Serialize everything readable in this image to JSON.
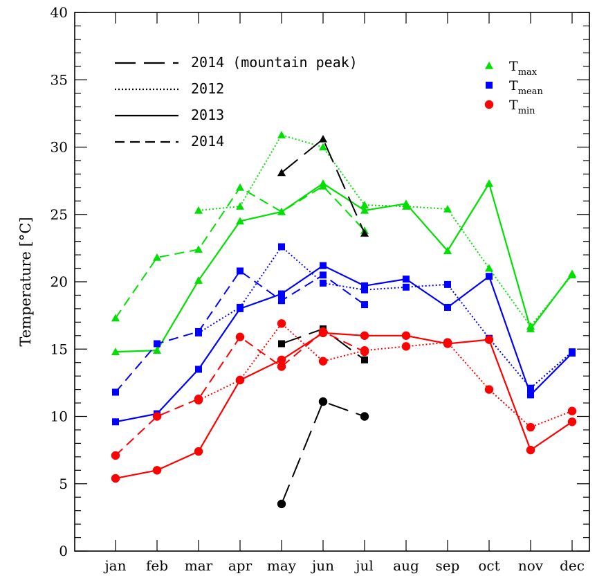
{
  "chart_data": {
    "type": "line",
    "ylabel": "Temperature [°C]",
    "ylim": [
      0,
      40
    ],
    "yticks": [
      0,
      5,
      10,
      15,
      20,
      25,
      30,
      35,
      40
    ],
    "ytick_labels": [
      "0",
      "5",
      "10",
      "15",
      "20",
      "25",
      "30",
      "35",
      "40"
    ],
    "categories": [
      "jan",
      "feb",
      "mar",
      "apr",
      "may",
      "jun",
      "jul",
      "aug",
      "sep",
      "oct",
      "nov",
      "dec"
    ],
    "grid": false,
    "colors": {
      "tmax": "#00e000",
      "tmean": "#0000ff",
      "tmin": "#ff0000",
      "peak": "#000000"
    },
    "style_legend": [
      {
        "label": "2014 (mountain peak)",
        "style": "longdash"
      },
      {
        "label": "2012",
        "style": "dotted"
      },
      {
        "label": "2013",
        "style": "solid"
      },
      {
        "label": "2014",
        "style": "dashed"
      }
    ],
    "marker_legend": [
      {
        "base": "T",
        "sub": "max",
        "marker": "triangle",
        "color": "#00e000"
      },
      {
        "base": "T",
        "sub": "mean",
        "marker": "square",
        "color": "#0000ff"
      },
      {
        "base": "T",
        "sub": "min",
        "marker": "circle",
        "color": "#ff0000"
      }
    ],
    "series": [
      {
        "variable": "Tmax",
        "year": "2013",
        "style": "solid",
        "marker": "triangle",
        "color": "#00e000",
        "values": [
          14.8,
          14.9,
          20.1,
          24.5,
          25.2,
          27.3,
          25.3,
          25.8,
          22.3,
          27.3,
          16.5,
          20.6
        ]
      },
      {
        "variable": "Tmax",
        "year": "2012",
        "style": "dotted",
        "marker": "triangle",
        "color": "#00e000",
        "values": [
          null,
          null,
          25.3,
          25.6,
          30.9,
          30.0,
          25.7,
          25.6,
          25.4,
          21.0,
          16.7,
          20.5
        ]
      },
      {
        "variable": "Tmax",
        "year": "2014",
        "style": "dashed",
        "marker": "triangle",
        "color": "#00e000",
        "values": [
          17.3,
          21.8,
          22.4,
          27.0,
          25.2,
          27.1,
          23.8,
          null,
          null,
          null,
          null,
          null
        ]
      },
      {
        "variable": "Tmax",
        "year": "2014 (mountain peak)",
        "style": "longdash",
        "marker": "triangle",
        "color": "#000000",
        "values": [
          null,
          null,
          null,
          null,
          28.1,
          30.6,
          23.6,
          null,
          null,
          null,
          null,
          null
        ]
      },
      {
        "variable": "Tmean",
        "year": "2013",
        "style": "solid",
        "marker": "square",
        "color": "#0000ff",
        "values": [
          9.6,
          10.2,
          13.5,
          18.0,
          19.1,
          21.2,
          19.7,
          20.2,
          18.1,
          20.4,
          11.6,
          14.7
        ]
      },
      {
        "variable": "Tmean",
        "year": "2012",
        "style": "dotted",
        "marker": "square",
        "color": "#0000ff",
        "values": [
          null,
          null,
          16.2,
          18.1,
          22.6,
          19.9,
          19.4,
          19.6,
          19.8,
          15.8,
          12.1,
          14.8
        ]
      },
      {
        "variable": "Tmean",
        "year": "2014",
        "style": "dashed",
        "marker": "square",
        "color": "#0000ff",
        "values": [
          11.8,
          15.4,
          16.3,
          20.8,
          18.6,
          20.5,
          18.3,
          null,
          null,
          null,
          null,
          null
        ]
      },
      {
        "variable": "Tmean",
        "year": "2014 (mountain peak)",
        "style": "longdash",
        "marker": "square",
        "color": "#000000",
        "values": [
          null,
          null,
          null,
          null,
          15.4,
          16.5,
          14.2,
          null,
          null,
          null,
          null,
          null
        ]
      },
      {
        "variable": "Tmin",
        "year": "2013",
        "style": "solid",
        "marker": "circle",
        "color": "#ff0000",
        "values": [
          5.4,
          6.0,
          7.4,
          12.7,
          14.2,
          16.2,
          16.0,
          16.0,
          15.4,
          15.7,
          7.5,
          9.6
        ]
      },
      {
        "variable": "Tmin",
        "year": "2012",
        "style": "dotted",
        "marker": "circle",
        "color": "#ff0000",
        "values": [
          null,
          null,
          11.2,
          12.7,
          16.9,
          14.1,
          14.9,
          15.2,
          15.5,
          12.0,
          9.2,
          10.4
        ]
      },
      {
        "variable": "Tmin",
        "year": "2014",
        "style": "dashed",
        "marker": "circle",
        "color": "#ff0000",
        "values": [
          7.1,
          10.0,
          11.3,
          15.9,
          13.7,
          16.3,
          14.8,
          null,
          null,
          null,
          null,
          null
        ]
      },
      {
        "variable": "Tmin",
        "year": "2014 (mountain peak)",
        "style": "longdash",
        "marker": "circle",
        "color": "#000000",
        "values": [
          null,
          null,
          null,
          null,
          3.5,
          11.1,
          10.0,
          null,
          null,
          null,
          null,
          null
        ]
      }
    ]
  }
}
